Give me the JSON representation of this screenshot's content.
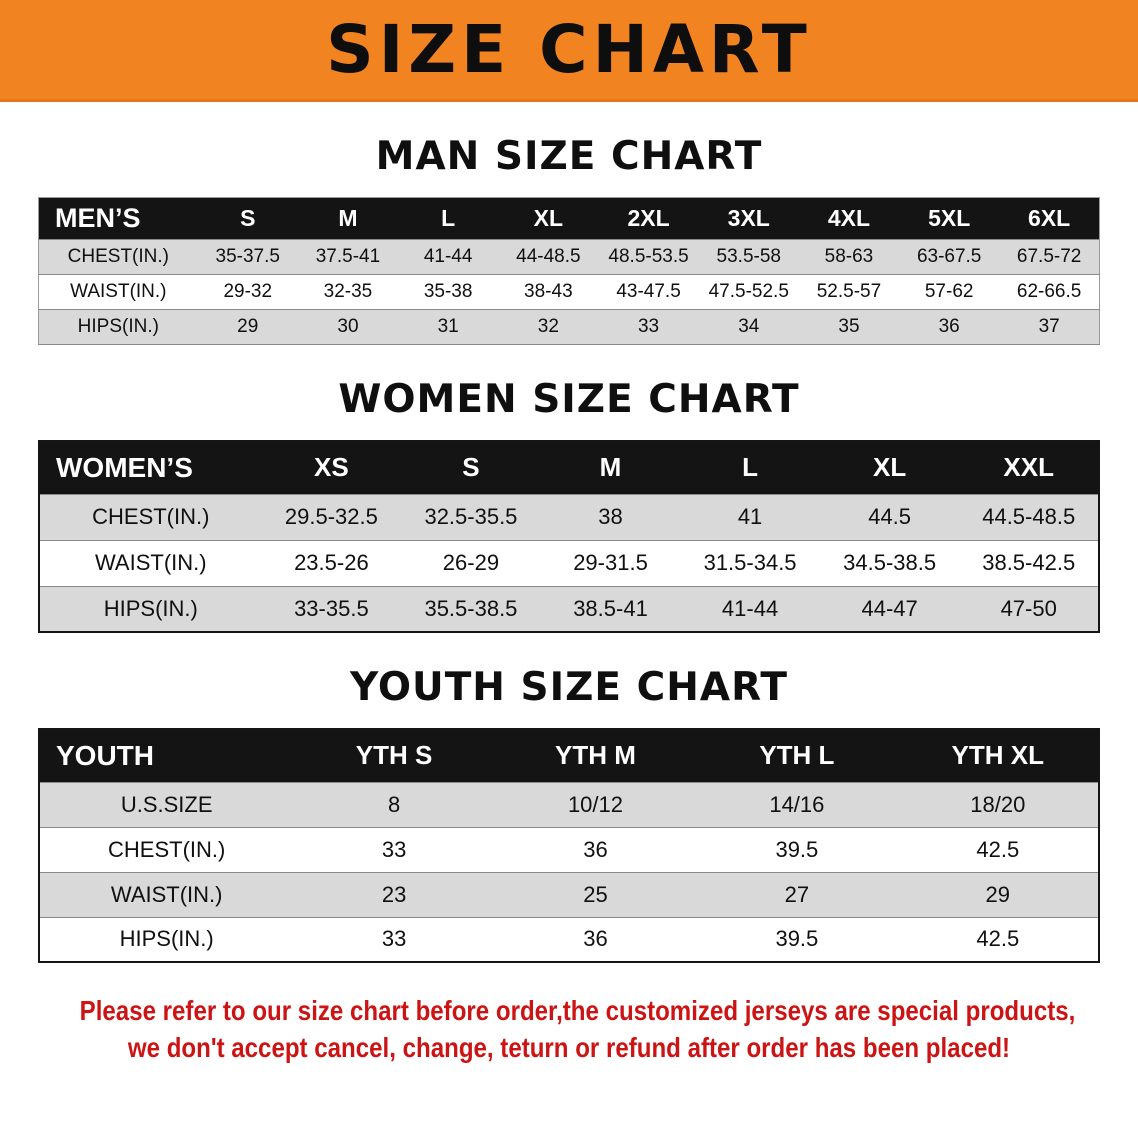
{
  "colors": {
    "accent-orange": "#f28321",
    "header-black": "#141414",
    "row-gray": "#d9d9d9",
    "note-red": "#cc1414"
  },
  "banner": {
    "title": "SIZE CHART"
  },
  "chart_data": [
    {
      "type": "table",
      "title": "MAN SIZE CHART",
      "columns": [
        "MEN’S",
        "S",
        "M",
        "L",
        "XL",
        "2XL",
        "3XL",
        "4XL",
        "5XL",
        "6XL"
      ],
      "rows": [
        [
          "CHEST(IN.)",
          "35-37.5",
          "37.5-41",
          "41-44",
          "44-48.5",
          "48.5-53.5",
          "53.5-58",
          "58-63",
          "63-67.5",
          "67.5-72"
        ],
        [
          "WAIST(IN.)",
          "29-32",
          "32-35",
          "35-38",
          "38-43",
          "43-47.5",
          "47.5-52.5",
          "52.5-57",
          "57-62",
          "62-66.5"
        ],
        [
          "HIPS(IN.)",
          "29",
          "30",
          "31",
          "32",
          "33",
          "34",
          "35",
          "36",
          "37"
        ]
      ]
    },
    {
      "type": "table",
      "title": "WOMEN SIZE CHART",
      "columns": [
        "WOMEN’S",
        "XS",
        "S",
        "M",
        "L",
        "XL",
        "XXL"
      ],
      "rows": [
        [
          "CHEST(IN.)",
          "29.5-32.5",
          "32.5-35.5",
          "38",
          "41",
          "44.5",
          "44.5-48.5"
        ],
        [
          "WAIST(IN.)",
          "23.5-26",
          "26-29",
          "29-31.5",
          "31.5-34.5",
          "34.5-38.5",
          "38.5-42.5"
        ],
        [
          "HIPS(IN.)",
          "33-35.5",
          "35.5-38.5",
          "38.5-41",
          "41-44",
          "44-47",
          "47-50"
        ]
      ]
    },
    {
      "type": "table",
      "title": "YOUTH SIZE CHART",
      "columns": [
        "YOUTH",
        "YTH S",
        "YTH M",
        "YTH L",
        "YTH XL"
      ],
      "rows": [
        [
          "U.S.SIZE",
          "8",
          "10/12",
          "14/16",
          "18/20"
        ],
        [
          "CHEST(IN.)",
          "33",
          "36",
          "39.5",
          "42.5"
        ],
        [
          "WAIST(IN.)",
          "23",
          "25",
          "27",
          "29"
        ],
        [
          "HIPS(IN.)",
          "33",
          "36",
          "39.5",
          "42.5"
        ]
      ]
    }
  ],
  "footer": {
    "lines": [
      "Please refer to our size chart before order,the customized jerseys are special products,",
      "we don't accept cancel, change, teturn or refund after order has been placed!"
    ]
  }
}
